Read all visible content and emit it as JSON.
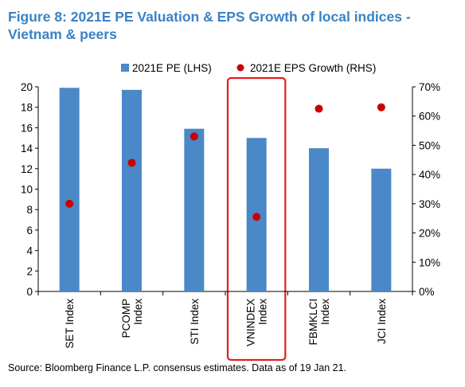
{
  "figure": {
    "title": "Figure 8: 2021E PE Valuation & EPS Growth of local indices - Vietnam & peers",
    "source": "Source: Bloomberg Finance L.P. consensus estimates. Data as of 19 Jan 21."
  },
  "chart_data": {
    "type": "bar",
    "categories": [
      [
        "SET Index"
      ],
      [
        "PCOMP",
        "Index"
      ],
      [
        "STI Index"
      ],
      [
        "VNINDEX",
        "Index"
      ],
      [
        "FBMKLCI",
        "Index"
      ],
      [
        "JCI Index"
      ]
    ],
    "series": [
      {
        "name": "2021E PE (LHS)",
        "type": "bar",
        "axis": "left",
        "color": "#4a88c8",
        "values": [
          19.9,
          19.7,
          15.9,
          15.0,
          14.0,
          12.0
        ]
      },
      {
        "name": "2021E EPS Growth (RHS)",
        "type": "scatter",
        "axis": "right",
        "color": "#cc0000",
        "values": [
          30,
          44,
          53,
          25.5,
          62.5,
          63
        ]
      }
    ],
    "left_axis": {
      "min": 0,
      "max": 20,
      "step": 2
    },
    "right_axis": {
      "min": 0,
      "max": 70,
      "step": 10,
      "suffix": "%"
    },
    "highlight_index": 3,
    "highlight_color": "#e0201e",
    "legend_position": "top"
  }
}
